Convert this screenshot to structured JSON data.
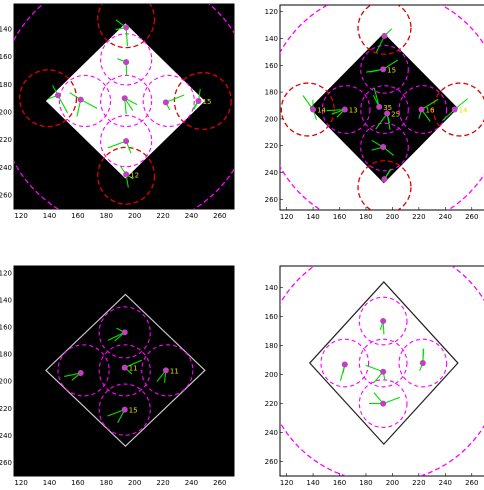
{
  "colors": {
    "dash_magenta": "#ff00ff",
    "dash_red": "#e00000",
    "ray_green": "#00e000",
    "point_magenta": "#c040c0",
    "label_yellow": "#e8e800",
    "square_white": "#ffffff",
    "square_black": "#000000",
    "diamond_outline_light": "#c8c8c8",
    "diamond_outline_dark": "#222222"
  },
  "panels": [
    {
      "id": "top-left",
      "background": "black",
      "diamond_fill": "white",
      "diamond_outline": "none",
      "x_ticks": [
        "120",
        "140",
        "160",
        "180",
        "200",
        "220",
        "240",
        "260"
      ],
      "y_ticks": [
        "140",
        "160",
        "180",
        "200",
        "220",
        "240",
        "260"
      ],
      "big_circle": {
        "cx": 194,
        "cy": 192,
        "r": 90
      },
      "red_circles": [
        {
          "cx": 194,
          "cy": 133,
          "r": 20
        },
        {
          "cx": 139,
          "cy": 190,
          "r": 20
        },
        {
          "cx": 248,
          "cy": 192,
          "r": 20
        },
        {
          "cx": 194,
          "cy": 246,
          "r": 20
        }
      ],
      "magenta_circles": [
        {
          "cx": 194,
          "cy": 162,
          "r": 18
        },
        {
          "cx": 165,
          "cy": 192,
          "r": 18
        },
        {
          "cx": 224,
          "cy": 192,
          "r": 18
        },
        {
          "cx": 194,
          "cy": 221,
          "r": 18
        },
        {
          "cx": 194,
          "cy": 192,
          "r": 18
        }
      ],
      "points": [
        {
          "x": 194,
          "y": 164,
          "label": ""
        },
        {
          "x": 162,
          "y": 191,
          "label": ""
        },
        {
          "x": 193,
          "y": 190,
          "label": ""
        },
        {
          "x": 222,
          "y": 193,
          "label": ""
        },
        {
          "x": 194,
          "y": 221,
          "label": ""
        },
        {
          "x": 146,
          "y": 188,
          "label": ""
        },
        {
          "x": 245,
          "y": 192,
          "label": "15"
        },
        {
          "x": 194,
          "y": 139,
          "label": ""
        },
        {
          "x": 194,
          "y": 245,
          "label": "12"
        }
      ]
    },
    {
      "id": "top-right",
      "background": "white",
      "diamond_fill": "black",
      "diamond_outline": "none",
      "x_ticks": [
        "120",
        "140",
        "160",
        "180",
        "200",
        "220",
        "240",
        "260"
      ],
      "y_ticks": [
        "120",
        "140",
        "160",
        "180",
        "200",
        "220",
        "240",
        "260"
      ],
      "big_circle": {
        "cx": 194,
        "cy": 193,
        "r": 90
      },
      "red_circles": [
        {
          "cx": 194,
          "cy": 132,
          "r": 20
        },
        {
          "cx": 136,
          "cy": 193,
          "r": 20
        },
        {
          "cx": 251,
          "cy": 193,
          "r": 20
        },
        {
          "cx": 194,
          "cy": 251,
          "r": 20
        }
      ],
      "magenta_circles": [
        {
          "cx": 194,
          "cy": 163,
          "r": 18
        },
        {
          "cx": 165,
          "cy": 193,
          "r": 18
        },
        {
          "cx": 223,
          "cy": 193,
          "r": 18
        },
        {
          "cx": 194,
          "cy": 221,
          "r": 18
        },
        {
          "cx": 194,
          "cy": 193,
          "r": 18
        }
      ],
      "points": [
        {
          "x": 193,
          "y": 163,
          "label": "15"
        },
        {
          "x": 164,
          "y": 193,
          "label": "13"
        },
        {
          "x": 190,
          "y": 191,
          "label": "35"
        },
        {
          "x": 196,
          "y": 196,
          "label": "25"
        },
        {
          "x": 222,
          "y": 193,
          "label": "16"
        },
        {
          "x": 193,
          "y": 221,
          "label": ""
        },
        {
          "x": 140,
          "y": 193,
          "label": "14"
        },
        {
          "x": 247,
          "y": 193,
          "label": "14"
        },
        {
          "x": 194,
          "y": 138,
          "label": ""
        },
        {
          "x": 194,
          "y": 245,
          "label": ""
        }
      ]
    },
    {
      "id": "bottom-left",
      "background": "black",
      "diamond_fill": "none",
      "diamond_outline": "light",
      "x_ticks": [
        "120",
        "140",
        "160",
        "180",
        "200",
        "220",
        "240",
        "260"
      ],
      "y_ticks": [
        "120",
        "140",
        "160",
        "180",
        "200",
        "220",
        "240",
        "260"
      ],
      "big_circle": null,
      "red_circles": [],
      "magenta_circles": [
        {
          "cx": 193,
          "cy": 164,
          "r": 18
        },
        {
          "cx": 164,
          "cy": 192,
          "r": 18
        },
        {
          "cx": 223,
          "cy": 192,
          "r": 18
        },
        {
          "cx": 193,
          "cy": 221,
          "r": 18
        },
        {
          "cx": 193,
          "cy": 192,
          "r": 18
        }
      ],
      "points": [
        {
          "x": 193,
          "y": 164,
          "label": ""
        },
        {
          "x": 162,
          "y": 194,
          "label": ""
        },
        {
          "x": 193,
          "y": 190,
          "label": "11"
        },
        {
          "x": 222,
          "y": 192,
          "label": "11"
        },
        {
          "x": 193,
          "y": 221,
          "label": "15"
        }
      ]
    },
    {
      "id": "bottom-right",
      "background": "white",
      "diamond_fill": "none",
      "diamond_outline": "dark",
      "x_ticks": [
        "120",
        "140",
        "160",
        "180",
        "200",
        "220",
        "240",
        "260"
      ],
      "y_ticks": [
        "140",
        "160",
        "180",
        "200",
        "220",
        "240",
        "260"
      ],
      "big_circle": {
        "cx": 193,
        "cy": 192,
        "r": 90
      },
      "red_circles": [],
      "magenta_circles": [
        {
          "cx": 193,
          "cy": 163,
          "r": 18
        },
        {
          "cx": 164,
          "cy": 192,
          "r": 18
        },
        {
          "cx": 223,
          "cy": 192,
          "r": 18
        },
        {
          "cx": 193,
          "cy": 220,
          "r": 18
        },
        {
          "cx": 193,
          "cy": 192,
          "r": 18
        }
      ],
      "points": [
        {
          "x": 193,
          "y": 163,
          "label": ""
        },
        {
          "x": 164,
          "y": 193,
          "label": ""
        },
        {
          "x": 193,
          "y": 198,
          "label": ""
        },
        {
          "x": 223,
          "y": 192,
          "label": ""
        },
        {
          "x": 193,
          "y": 220,
          "label": ""
        }
      ]
    }
  ]
}
